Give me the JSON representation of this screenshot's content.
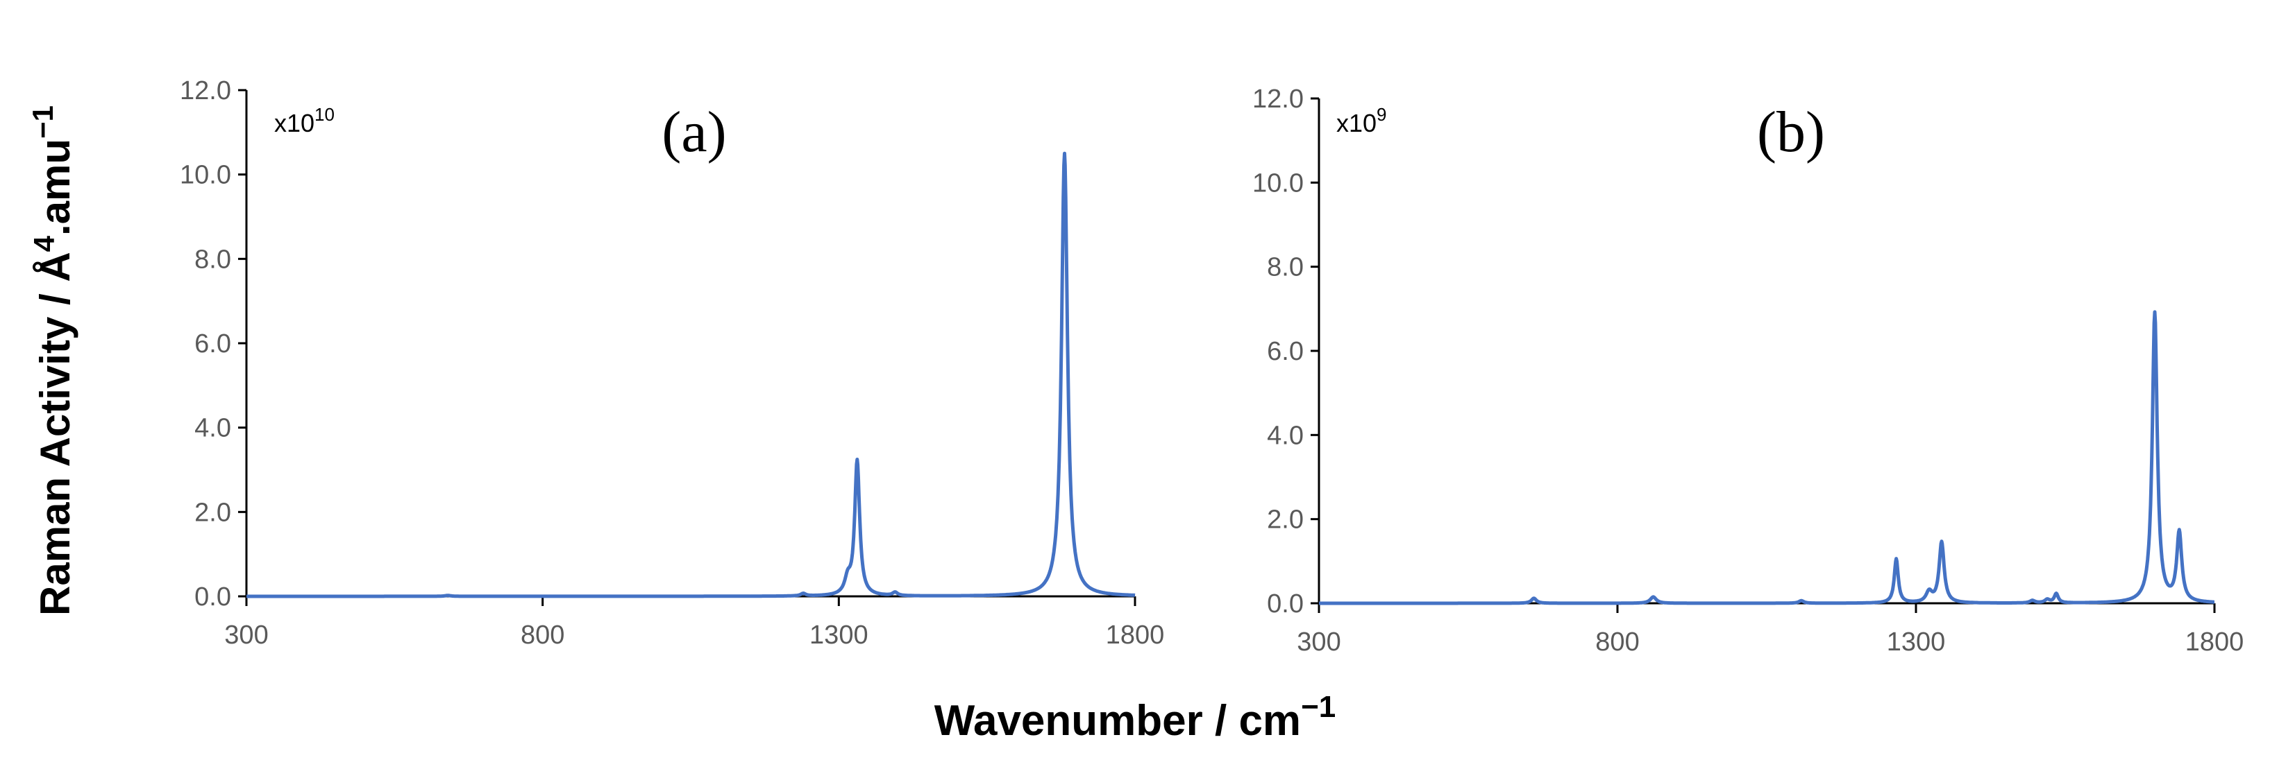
{
  "figure": {
    "ylabel": "Raman Activity / Å",
    "ylabel_sup": "4",
    "ylabel_rest": ".amu",
    "ylabel_exp": "−1",
    "xlabel": "Wavenumber / cm",
    "xlabel_exp": "−1",
    "line_color": "#4472c4",
    "axis_color": "#000000",
    "tick_color": "#595959"
  },
  "chart_data": [
    {
      "type": "line",
      "panel_label": "(a)",
      "scale_base": "x10",
      "scale_exp": "10",
      "xlim": [
        300,
        1800
      ],
      "ylim": [
        0,
        12
      ],
      "x_ticks": [
        "300",
        "800",
        "1300",
        "1800"
      ],
      "y_ticks": [
        "0.0",
        "2.0",
        "4.0",
        "6.0",
        "8.0",
        "10.0",
        "12.0"
      ],
      "peaks": [
        {
          "x": 640,
          "y": 0.02,
          "w": 6
        },
        {
          "x": 1240,
          "y": 0.06,
          "w": 5
        },
        {
          "x": 1315,
          "y": 0.35,
          "w": 6
        },
        {
          "x": 1331,
          "y": 3.2,
          "w": 5
        },
        {
          "x": 1395,
          "y": 0.08,
          "w": 5
        },
        {
          "x": 1681,
          "y": 10.5,
          "w": 6
        }
      ],
      "series": [
        {
          "values": []
        }
      ]
    },
    {
      "type": "line",
      "panel_label": "(b)",
      "scale_base": "x10",
      "scale_exp": "9",
      "xlim": [
        300,
        1800
      ],
      "ylim": [
        0,
        12
      ],
      "x_ticks": [
        "300",
        "800",
        "1300",
        "1800"
      ],
      "y_ticks": [
        "0.0",
        "2.0",
        "4.0",
        "6.0",
        "8.0",
        "10.0",
        "12.0"
      ],
      "peaks": [
        {
          "x": 660,
          "y": 0.12,
          "w": 5
        },
        {
          "x": 860,
          "y": 0.15,
          "w": 6
        },
        {
          "x": 1108,
          "y": 0.06,
          "w": 5
        },
        {
          "x": 1267,
          "y": 1.05,
          "w": 4
        },
        {
          "x": 1322,
          "y": 0.25,
          "w": 6
        },
        {
          "x": 1343,
          "y": 1.45,
          "w": 5
        },
        {
          "x": 1495,
          "y": 0.06,
          "w": 5
        },
        {
          "x": 1520,
          "y": 0.08,
          "w": 5
        },
        {
          "x": 1535,
          "y": 0.22,
          "w": 4
        },
        {
          "x": 1700,
          "y": 6.9,
          "w": 5
        },
        {
          "x": 1741,
          "y": 1.65,
          "w": 5
        }
      ],
      "series": [
        {
          "values": []
        }
      ]
    }
  ]
}
